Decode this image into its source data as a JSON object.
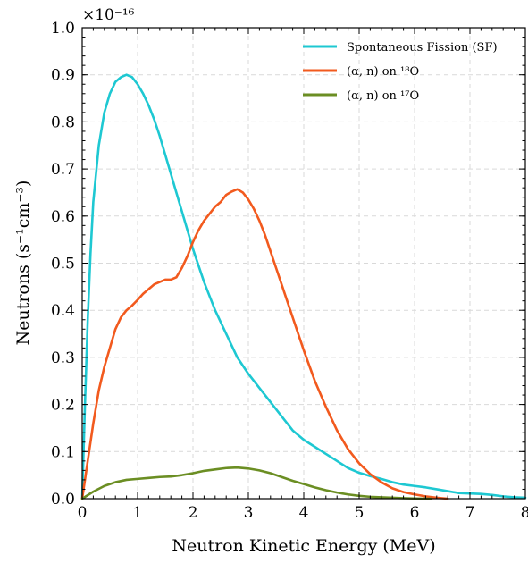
{
  "chart_data": {
    "type": "line",
    "title": "",
    "xlabel": "Neutron Kinetic Energy (MeV)",
    "ylabel": "Neutrons (s⁻¹cm⁻³)",
    "y_multiplier_label": "×10⁻¹⁶",
    "xlim": [
      0,
      8
    ],
    "ylim": [
      0,
      1.0
    ],
    "x_ticks": [
      "0",
      "1",
      "2",
      "3",
      "4",
      "5",
      "6",
      "7",
      "8"
    ],
    "y_ticks": [
      "0.0",
      "0.1",
      "0.2",
      "0.3",
      "0.4",
      "0.5",
      "0.6",
      "0.7",
      "0.8",
      "0.9",
      "1.0"
    ],
    "grid": true,
    "legend_position": "top-right",
    "series": [
      {
        "name": "Spontaneous Fission (SF)",
        "color": "#1ec8d2",
        "points": [
          [
            0,
            0
          ],
          [
            0.05,
            0.2
          ],
          [
            0.1,
            0.38
          ],
          [
            0.15,
            0.52
          ],
          [
            0.2,
            0.63
          ],
          [
            0.3,
            0.75
          ],
          [
            0.4,
            0.82
          ],
          [
            0.5,
            0.86
          ],
          [
            0.6,
            0.885
          ],
          [
            0.7,
            0.895
          ],
          [
            0.8,
            0.9
          ],
          [
            0.9,
            0.895
          ],
          [
            1.0,
            0.88
          ],
          [
            1.1,
            0.86
          ],
          [
            1.2,
            0.835
          ],
          [
            1.3,
            0.805
          ],
          [
            1.4,
            0.77
          ],
          [
            1.5,
            0.73
          ],
          [
            1.6,
            0.69
          ],
          [
            1.7,
            0.65
          ],
          [
            1.8,
            0.61
          ],
          [
            1.9,
            0.57
          ],
          [
            2.0,
            0.53
          ],
          [
            2.2,
            0.46
          ],
          [
            2.4,
            0.4
          ],
          [
            2.6,
            0.35
          ],
          [
            2.8,
            0.3
          ],
          [
            3.0,
            0.265
          ],
          [
            3.2,
            0.235
          ],
          [
            3.4,
            0.205
          ],
          [
            3.6,
            0.175
          ],
          [
            3.8,
            0.145
          ],
          [
            4.0,
            0.125
          ],
          [
            4.2,
            0.11
          ],
          [
            4.4,
            0.095
          ],
          [
            4.6,
            0.08
          ],
          [
            4.8,
            0.065
          ],
          [
            5.0,
            0.055
          ],
          [
            5.2,
            0.048
          ],
          [
            5.4,
            0.042
          ],
          [
            5.6,
            0.035
          ],
          [
            5.8,
            0.03
          ],
          [
            6.0,
            0.027
          ],
          [
            6.2,
            0.024
          ],
          [
            6.4,
            0.02
          ],
          [
            6.6,
            0.016
          ],
          [
            6.8,
            0.012
          ],
          [
            7.0,
            0.011
          ],
          [
            7.2,
            0.01
          ],
          [
            7.4,
            0.008
          ],
          [
            7.6,
            0.005
          ],
          [
            7.8,
            0.003
          ],
          [
            8.0,
            0.002
          ]
        ]
      },
      {
        "name": "(α, n) on ¹⁸O",
        "color": "#f25a1e",
        "points": [
          [
            0,
            0
          ],
          [
            0.1,
            0.08
          ],
          [
            0.2,
            0.16
          ],
          [
            0.3,
            0.23
          ],
          [
            0.4,
            0.28
          ],
          [
            0.5,
            0.32
          ],
          [
            0.6,
            0.36
          ],
          [
            0.7,
            0.385
          ],
          [
            0.8,
            0.4
          ],
          [
            0.9,
            0.41
          ],
          [
            1.0,
            0.422
          ],
          [
            1.1,
            0.435
          ],
          [
            1.2,
            0.445
          ],
          [
            1.3,
            0.455
          ],
          [
            1.4,
            0.46
          ],
          [
            1.5,
            0.465
          ],
          [
            1.6,
            0.465
          ],
          [
            1.7,
            0.47
          ],
          [
            1.8,
            0.49
          ],
          [
            1.9,
            0.515
          ],
          [
            2.0,
            0.545
          ],
          [
            2.1,
            0.57
          ],
          [
            2.2,
            0.59
          ],
          [
            2.3,
            0.605
          ],
          [
            2.4,
            0.62
          ],
          [
            2.5,
            0.63
          ],
          [
            2.6,
            0.645
          ],
          [
            2.7,
            0.652
          ],
          [
            2.8,
            0.657
          ],
          [
            2.9,
            0.65
          ],
          [
            3.0,
            0.635
          ],
          [
            3.1,
            0.615
          ],
          [
            3.2,
            0.59
          ],
          [
            3.3,
            0.56
          ],
          [
            3.4,
            0.525
          ],
          [
            3.5,
            0.49
          ],
          [
            3.6,
            0.455
          ],
          [
            3.7,
            0.42
          ],
          [
            3.8,
            0.385
          ],
          [
            3.9,
            0.35
          ],
          [
            4.0,
            0.315
          ],
          [
            4.2,
            0.25
          ],
          [
            4.4,
            0.195
          ],
          [
            4.6,
            0.145
          ],
          [
            4.8,
            0.105
          ],
          [
            5.0,
            0.075
          ],
          [
            5.2,
            0.052
          ],
          [
            5.4,
            0.035
          ],
          [
            5.6,
            0.022
          ],
          [
            5.8,
            0.014
          ],
          [
            6.0,
            0.009
          ],
          [
            6.2,
            0.005
          ],
          [
            6.4,
            0.002
          ],
          [
            6.6,
            0
          ]
        ]
      },
      {
        "name": "(α, n) on ¹⁷O",
        "color": "#6b8e23",
        "points": [
          [
            0,
            0
          ],
          [
            0.2,
            0.015
          ],
          [
            0.4,
            0.027
          ],
          [
            0.6,
            0.035
          ],
          [
            0.8,
            0.04
          ],
          [
            1.0,
            0.042
          ],
          [
            1.2,
            0.044
          ],
          [
            1.4,
            0.046
          ],
          [
            1.6,
            0.047
          ],
          [
            1.8,
            0.05
          ],
          [
            2.0,
            0.054
          ],
          [
            2.2,
            0.059
          ],
          [
            2.4,
            0.062
          ],
          [
            2.6,
            0.065
          ],
          [
            2.8,
            0.066
          ],
          [
            3.0,
            0.064
          ],
          [
            3.2,
            0.06
          ],
          [
            3.4,
            0.054
          ],
          [
            3.6,
            0.046
          ],
          [
            3.8,
            0.038
          ],
          [
            4.0,
            0.031
          ],
          [
            4.2,
            0.024
          ],
          [
            4.4,
            0.018
          ],
          [
            4.6,
            0.013
          ],
          [
            4.8,
            0.009
          ],
          [
            5.0,
            0.006
          ],
          [
            5.2,
            0.004
          ],
          [
            5.4,
            0.003
          ],
          [
            5.6,
            0.002
          ],
          [
            5.8,
            0.001
          ],
          [
            6.0,
            0.0005
          ],
          [
            6.3,
            0
          ]
        ]
      }
    ]
  }
}
